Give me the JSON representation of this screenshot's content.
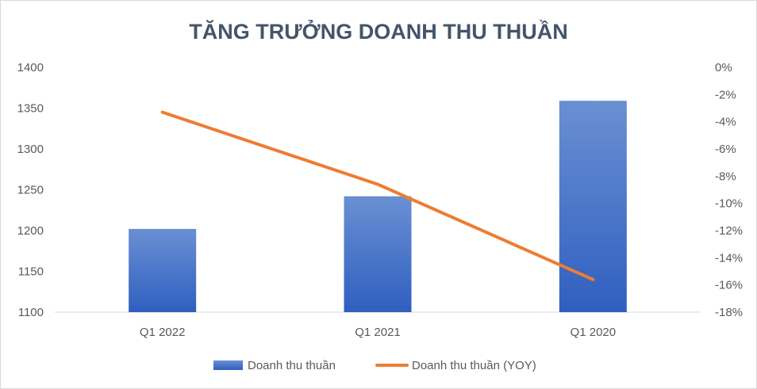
{
  "chart_data": {
    "type": "bar",
    "title": "TĂNG TRƯỞNG DOANH THU THUẦN",
    "categories": [
      "Q1 2022",
      "Q1 2021",
      "Q1 2020"
    ],
    "series": [
      {
        "name": "Doanh thu thuần",
        "type": "bar",
        "axis": "left",
        "values": [
          1202,
          1242,
          1359
        ],
        "color": "#4472c4"
      },
      {
        "name": "Doanh thu thuần (YOY)",
        "type": "line",
        "axis": "right",
        "values": [
          -3.3,
          -8.6,
          -15.6
        ],
        "color": "#ed7d31"
      }
    ],
    "y_left": {
      "ylim": [
        1100,
        1400
      ],
      "ticks": [
        "1400",
        "1350",
        "1300",
        "1250",
        "1200",
        "1150",
        "1100"
      ]
    },
    "y_right": {
      "ylim": [
        -18,
        0
      ],
      "unit": "%",
      "ticks": [
        "0%",
        "-2%",
        "-4%",
        "-6%",
        "-8%",
        "-10%",
        "-12%",
        "-14%",
        "-16%",
        "-18%"
      ]
    },
    "legend": {
      "position": "bottom"
    },
    "grid": false
  }
}
